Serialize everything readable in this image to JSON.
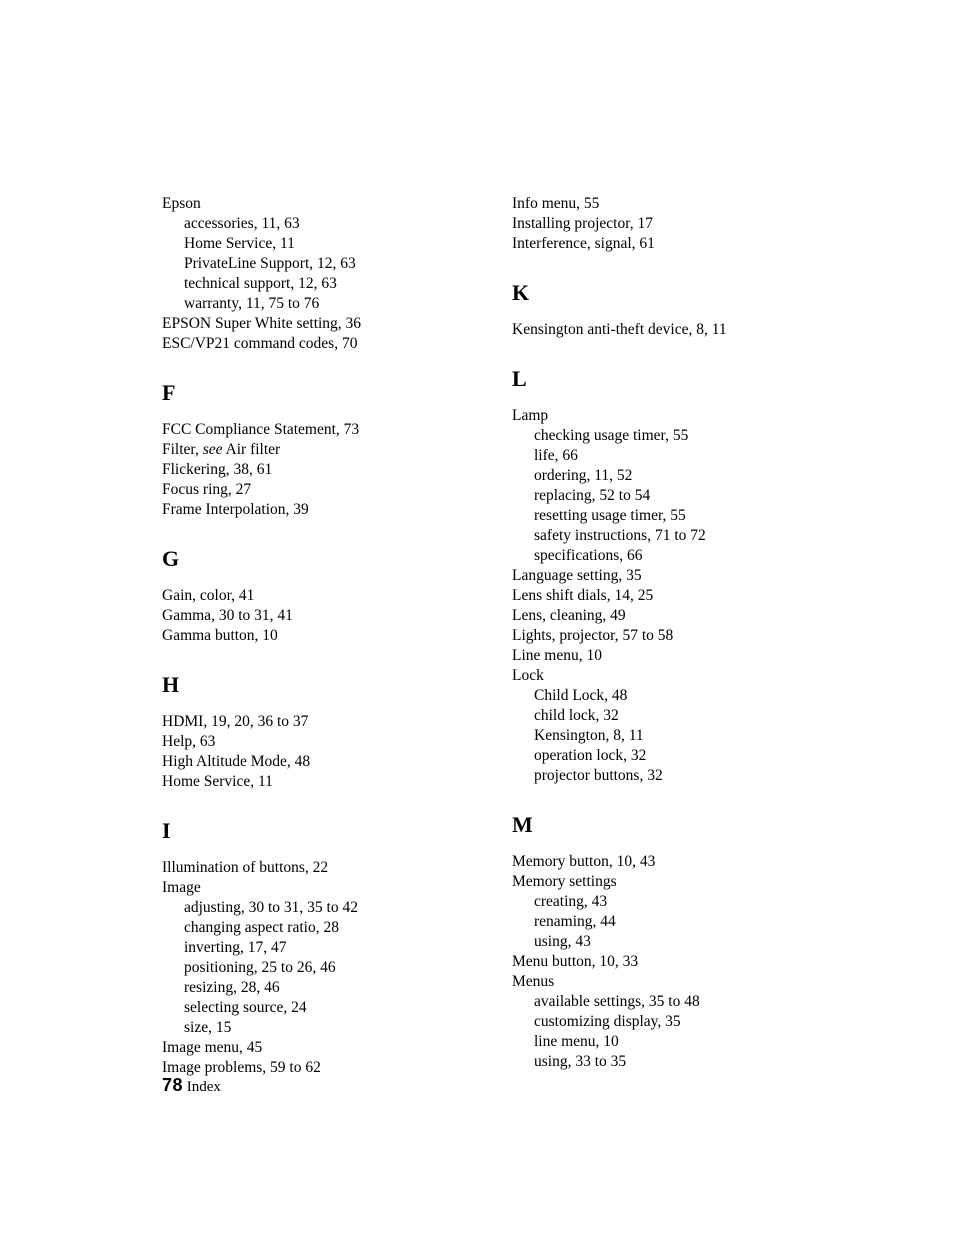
{
  "colors": {
    "text": "#000000",
    "background": "#ffffff"
  },
  "typography": {
    "body_family": "Garamond / serif",
    "body_size_pt": 11,
    "heading_size_pt": 16,
    "heading_weight": "bold",
    "footer_number_family": "sans-serif",
    "footer_number_weight": "extra-bold"
  },
  "footer": {
    "page_number": "78",
    "label": "Index"
  },
  "left": [
    {
      "type": "entry",
      "text": "Epson"
    },
    {
      "type": "sub",
      "text": "accessories, 11, 63"
    },
    {
      "type": "sub",
      "text": "Home Service, 11"
    },
    {
      "type": "sub",
      "text": "PrivateLine Support, 12, 63"
    },
    {
      "type": "sub",
      "text": "technical support, 12, 63"
    },
    {
      "type": "sub",
      "text": "warranty, 11, 75 to 76"
    },
    {
      "type": "entry",
      "text": "EPSON Super White setting, 36"
    },
    {
      "type": "entry",
      "text": "ESC/VP21 command codes, 70"
    },
    {
      "type": "head",
      "text": "F"
    },
    {
      "type": "entry",
      "text": "FCC Compliance Statement, 73"
    },
    {
      "type": "entry",
      "html": "Filter, <em class='see'>see</em> Air filter"
    },
    {
      "type": "entry",
      "text": "Flickering, 38, 61"
    },
    {
      "type": "entry",
      "text": "Focus ring, 27"
    },
    {
      "type": "entry",
      "text": "Frame Interpolation, 39"
    },
    {
      "type": "head",
      "text": "G"
    },
    {
      "type": "entry",
      "text": "Gain, color, 41"
    },
    {
      "type": "entry",
      "text": "Gamma, 30 to 31, 41"
    },
    {
      "type": "entry",
      "text": "Gamma button, 10"
    },
    {
      "type": "head",
      "text": "H"
    },
    {
      "type": "entry",
      "text": "HDMI, 19, 20, 36 to 37"
    },
    {
      "type": "entry",
      "text": "Help, 63"
    },
    {
      "type": "entry",
      "text": "High Altitude Mode, 48"
    },
    {
      "type": "entry",
      "text": "Home Service, 11"
    },
    {
      "type": "head",
      "text": "I"
    },
    {
      "type": "entry",
      "text": "Illumination of buttons, 22"
    },
    {
      "type": "entry",
      "text": "Image"
    },
    {
      "type": "sub",
      "text": "adjusting, 30 to 31, 35 to 42"
    },
    {
      "type": "sub",
      "text": "changing aspect ratio, 28"
    },
    {
      "type": "sub",
      "text": "inverting, 17, 47"
    },
    {
      "type": "sub",
      "text": "positioning, 25 to 26, 46"
    },
    {
      "type": "sub",
      "text": "resizing, 28, 46"
    },
    {
      "type": "sub",
      "text": "selecting source, 24"
    },
    {
      "type": "sub",
      "text": "size, 15"
    },
    {
      "type": "entry",
      "text": "Image menu, 45"
    },
    {
      "type": "entry",
      "text": "Image problems, 59 to 62"
    }
  ],
  "right": [
    {
      "type": "entry",
      "text": "Info menu, 55"
    },
    {
      "type": "entry",
      "text": "Installing projector, 17"
    },
    {
      "type": "entry",
      "text": "Interference, signal, 61"
    },
    {
      "type": "head",
      "text": "K"
    },
    {
      "type": "entry",
      "text": "Kensington anti-theft device, 8, 11"
    },
    {
      "type": "head",
      "text": "L"
    },
    {
      "type": "entry",
      "text": "Lamp"
    },
    {
      "type": "sub",
      "text": "checking usage timer, 55"
    },
    {
      "type": "sub",
      "text": "life, 66"
    },
    {
      "type": "sub",
      "text": "ordering, 11, 52"
    },
    {
      "type": "sub",
      "text": "replacing, 52 to 54"
    },
    {
      "type": "sub",
      "text": "resetting usage timer, 55"
    },
    {
      "type": "sub",
      "text": "safety instructions, 71 to 72"
    },
    {
      "type": "sub",
      "text": "specifications, 66"
    },
    {
      "type": "entry",
      "text": "Language setting, 35"
    },
    {
      "type": "entry",
      "text": "Lens shift dials, 14, 25"
    },
    {
      "type": "entry",
      "text": "Lens, cleaning, 49"
    },
    {
      "type": "entry",
      "text": "Lights, projector, 57 to 58"
    },
    {
      "type": "entry",
      "text": "Line menu, 10"
    },
    {
      "type": "entry",
      "text": "Lock"
    },
    {
      "type": "sub",
      "text": "Child Lock, 48"
    },
    {
      "type": "sub",
      "text": "child lock, 32"
    },
    {
      "type": "sub",
      "text": "Kensington, 8, 11"
    },
    {
      "type": "sub",
      "text": "operation lock, 32"
    },
    {
      "type": "sub",
      "text": "projector buttons, 32"
    },
    {
      "type": "head",
      "text": "M"
    },
    {
      "type": "entry",
      "text": "Memory button, 10, 43"
    },
    {
      "type": "entry",
      "text": "Memory settings"
    },
    {
      "type": "sub",
      "text": "creating, 43"
    },
    {
      "type": "sub",
      "text": "renaming, 44"
    },
    {
      "type": "sub",
      "text": "using, 43"
    },
    {
      "type": "entry",
      "text": "Menu button, 10, 33"
    },
    {
      "type": "entry",
      "text": "Menus"
    },
    {
      "type": "sub",
      "text": "available settings, 35 to 48"
    },
    {
      "type": "sub",
      "text": "customizing display, 35"
    },
    {
      "type": "sub",
      "text": "line menu, 10"
    },
    {
      "type": "sub",
      "text": "using, 33 to 35"
    }
  ]
}
